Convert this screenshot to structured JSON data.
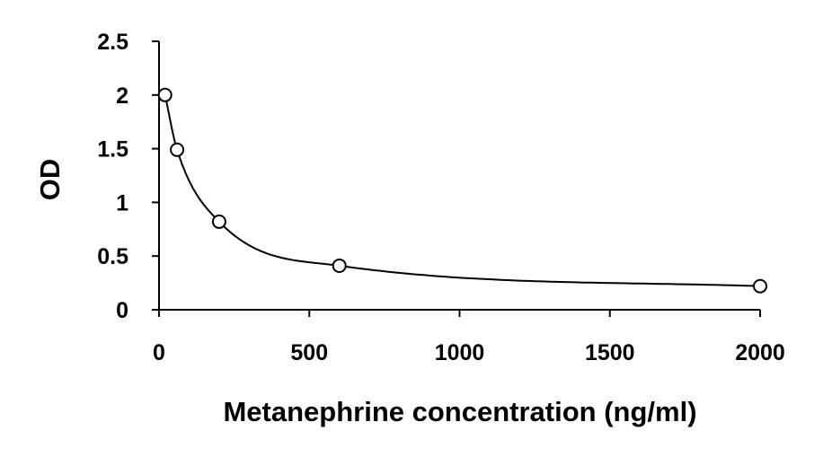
{
  "chart_data": {
    "type": "scatter",
    "title": "",
    "xlabel": "Metanephrine concentration (ng/ml)",
    "ylabel": "OD",
    "xlim": [
      0,
      2000
    ],
    "ylim": [
      0,
      2.5
    ],
    "x_ticks": [
      0,
      500,
      1000,
      1500,
      2000
    ],
    "x_tick_labels": [
      "0",
      "500",
      "1000",
      "1500",
      "2000"
    ],
    "y_ticks": [
      0,
      0.5,
      1,
      1.5,
      2,
      2.5
    ],
    "y_tick_labels": [
      "0",
      "0.5",
      "1",
      "1.5",
      "2",
      "2.5"
    ],
    "grid": false,
    "legend": "none",
    "series": [
      {
        "marker": "open-circle",
        "fit_line": "smooth-curve",
        "x": [
          20,
          60,
          200,
          600,
          2000
        ],
        "y": [
          2.0,
          1.49,
          0.82,
          0.41,
          0.22
        ]
      }
    ],
    "colors": {
      "axis": "#000000",
      "marker": "#000000",
      "curve": "#000000",
      "background": "#ffffff"
    }
  }
}
